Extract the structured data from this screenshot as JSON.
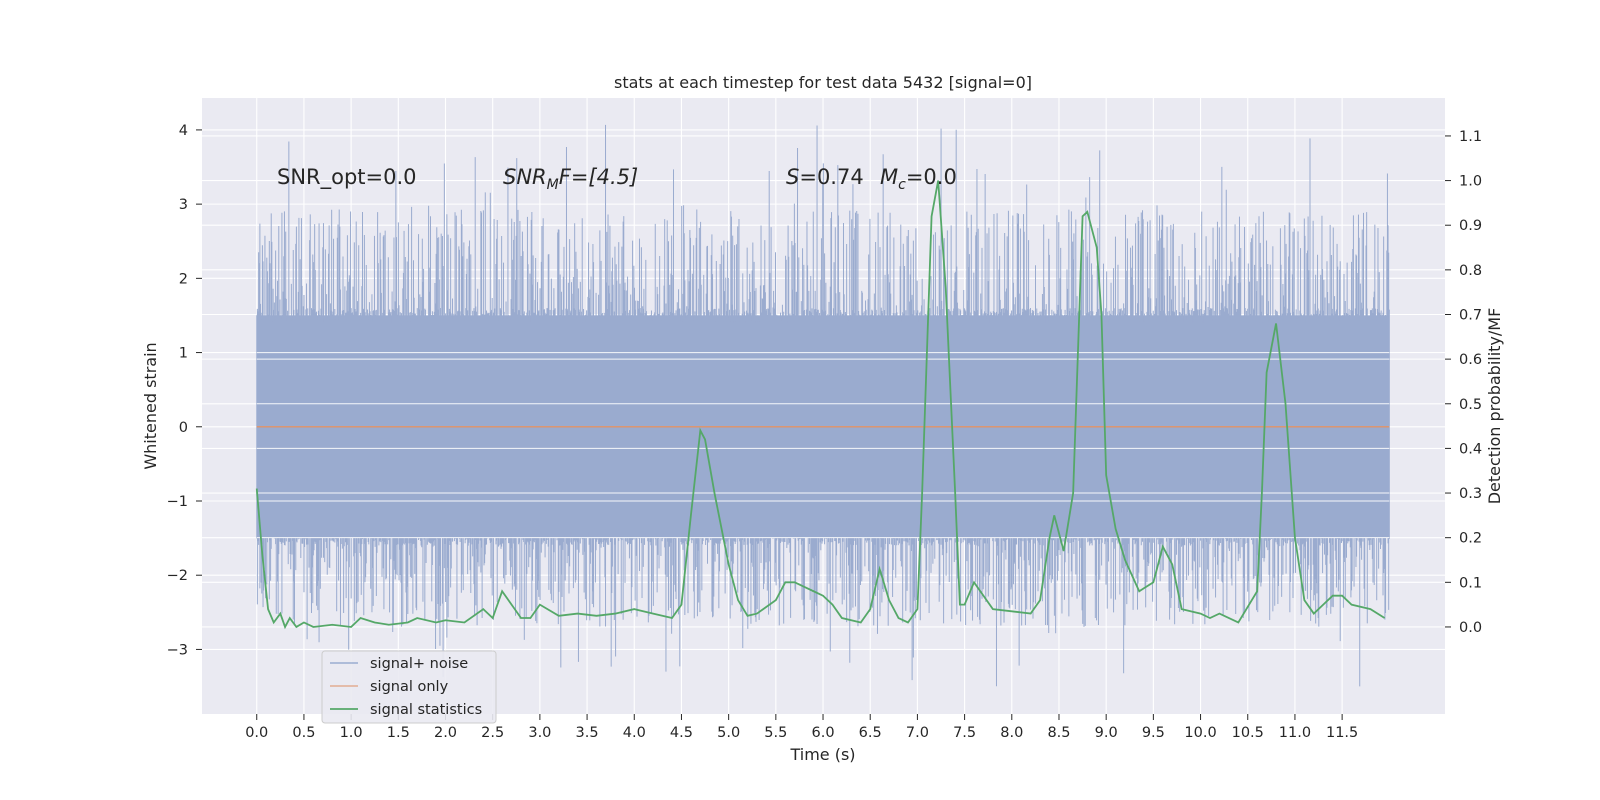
{
  "chart_data": {
    "type": "line",
    "title": "stats at each timestep for test data 5432 [signal=0]",
    "xlabel": "Time (s)",
    "ylabel_left": "Whitened strain",
    "ylabel_right": "Detection probability/MF",
    "xlim": [
      -0.58,
      12.59
    ],
    "ylim_left": [
      -3.87,
      4.43
    ],
    "ylim_right": [
      -0.195,
      1.185
    ],
    "xticks": [
      0.0,
      0.5,
      1.0,
      1.5,
      2.0,
      2.5,
      3.0,
      3.5,
      4.0,
      4.5,
      5.0,
      5.5,
      6.0,
      6.5,
      7.0,
      7.5,
      8.0,
      8.5,
      9.0,
      9.5,
      10.0,
      10.5,
      11.0,
      11.5
    ],
    "xtick_labels": [
      "0.0",
      "0.5",
      "1.0",
      "1.5",
      "2.0",
      "2.5",
      "3.0",
      "3.5",
      "4.0",
      "4.5",
      "5.0",
      "5.5",
      "6.0",
      "6.5",
      "7.0",
      "7.5",
      "8.0",
      "8.5",
      "9.0",
      "9.5",
      "10.0",
      "10.5",
      "11.0",
      "11.5"
    ],
    "yticks_left": [
      -3,
      -2,
      -1,
      0,
      1,
      2,
      3,
      4
    ],
    "ytick_labels_left": [
      "−3",
      "−2",
      "−1",
      "0",
      "1",
      "2",
      "3",
      "4"
    ],
    "yticks_right": [
      0.0,
      0.1,
      0.2,
      0.3,
      0.4,
      0.5,
      0.6,
      0.7,
      0.8,
      0.9,
      1.0,
      1.1
    ],
    "ytick_labels_right": [
      "0.0",
      "0.1",
      "0.2",
      "0.3",
      "0.4",
      "0.5",
      "0.6",
      "0.7",
      "0.8",
      "0.9",
      "1.0",
      "1.1"
    ],
    "grid": true,
    "legend_position": "lower-left",
    "annotations": {
      "snr_opt": "SNR_opt=0.0",
      "snr_mf_main": "SNR",
      "snr_mf_sub": "M",
      "snr_mf_rest": "F=[4.5]",
      "s_var": "S",
      "s_val": "=0.74",
      "mc_var": "M",
      "mc_sub": "c",
      "mc_val": "=0.0"
    },
    "series": [
      {
        "name": "signal+ noise",
        "axis": "left",
        "color": "#4c72b0",
        "style": "noise",
        "x_range": [
          0.0,
          12.0
        ],
        "band": [
          -1.5,
          1.5
        ],
        "envelope": [
          -3.5,
          4.1
        ]
      },
      {
        "name": "signal only",
        "axis": "left",
        "color": "#dd8452",
        "x": [
          0.0,
          12.0
        ],
        "y": [
          0.0,
          0.0
        ]
      },
      {
        "name": "signal statistics",
        "axis": "right",
        "color": "#55a868",
        "x": [
          0.0,
          0.06,
          0.12,
          0.18,
          0.25,
          0.3,
          0.35,
          0.42,
          0.5,
          0.6,
          0.8,
          1.0,
          1.1,
          1.25,
          1.4,
          1.6,
          1.7,
          1.9,
          2.0,
          2.2,
          2.4,
          2.5,
          2.6,
          2.7,
          2.8,
          2.9,
          3.0,
          3.2,
          3.4,
          3.6,
          3.8,
          4.0,
          4.2,
          4.4,
          4.5,
          4.6,
          4.7,
          4.75,
          4.85,
          5.0,
          5.1,
          5.2,
          5.3,
          5.5,
          5.6,
          5.7,
          5.8,
          5.9,
          6.0,
          6.1,
          6.2,
          6.4,
          6.5,
          6.6,
          6.7,
          6.8,
          6.9,
          7.0,
          7.05,
          7.15,
          7.22,
          7.3,
          7.4,
          7.45,
          7.5,
          7.6,
          7.7,
          7.8,
          8.0,
          8.2,
          8.3,
          8.4,
          8.45,
          8.55,
          8.65,
          8.75,
          8.8,
          8.9,
          8.95,
          9.0,
          9.1,
          9.2,
          9.35,
          9.5,
          9.6,
          9.7,
          9.8,
          9.9,
          10.0,
          10.1,
          10.2,
          10.4,
          10.6,
          10.65,
          10.7,
          10.8,
          10.9,
          11.0,
          11.1,
          11.2,
          11.3,
          11.4,
          11.5,
          11.6,
          11.8,
          11.95
        ],
        "y": [
          0.31,
          0.16,
          0.04,
          0.01,
          0.03,
          0.0,
          0.02,
          0.0,
          0.01,
          0.0,
          0.005,
          0.0,
          0.02,
          0.01,
          0.005,
          0.01,
          0.02,
          0.01,
          0.015,
          0.01,
          0.04,
          0.02,
          0.08,
          0.05,
          0.02,
          0.02,
          0.05,
          0.025,
          0.03,
          0.025,
          0.03,
          0.04,
          0.03,
          0.02,
          0.05,
          0.25,
          0.44,
          0.42,
          0.3,
          0.14,
          0.06,
          0.025,
          0.03,
          0.06,
          0.1,
          0.1,
          0.09,
          0.08,
          0.07,
          0.05,
          0.02,
          0.01,
          0.04,
          0.13,
          0.06,
          0.02,
          0.01,
          0.04,
          0.3,
          0.92,
          1.0,
          0.76,
          0.3,
          0.05,
          0.05,
          0.1,
          0.07,
          0.04,
          0.035,
          0.03,
          0.06,
          0.2,
          0.25,
          0.17,
          0.3,
          0.92,
          0.93,
          0.85,
          0.7,
          0.34,
          0.22,
          0.15,
          0.08,
          0.1,
          0.18,
          0.14,
          0.04,
          0.035,
          0.03,
          0.02,
          0.03,
          0.01,
          0.08,
          0.3,
          0.57,
          0.68,
          0.5,
          0.2,
          0.06,
          0.03,
          0.05,
          0.07,
          0.07,
          0.05,
          0.04,
          0.02
        ]
      }
    ]
  }
}
